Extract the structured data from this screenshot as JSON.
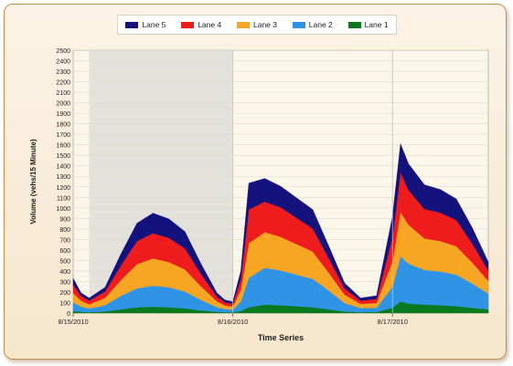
{
  "chart_data": {
    "type": "area",
    "stacked": true,
    "title": "",
    "xlabel": "Time Series",
    "ylabel": "Volume (vehs/15 Minute)",
    "ylim": [
      0,
      2500
    ],
    "ytick_step": 100,
    "grid": true,
    "legend_position": "top-center",
    "x_tick_labels": [
      "8/15/2010",
      "8/16/2010",
      "8/17/2010"
    ],
    "x_range_days": [
      0,
      2.6
    ],
    "shaded_region_days": [
      0.1,
      1.0
    ],
    "x_unit": "days from 8/15/2010 00:00",
    "series": [
      {
        "name": "Lane 1",
        "color": "#0b7a1f",
        "x": [
          0,
          0.05,
          0.1,
          0.2,
          0.3,
          0.4,
          0.5,
          0.6,
          0.7,
          0.8,
          0.9,
          0.95,
          1.0,
          1.05,
          1.1,
          1.2,
          1.3,
          1.4,
          1.5,
          1.6,
          1.7,
          1.8,
          1.9,
          2.0,
          2.05,
          2.1,
          2.2,
          2.3,
          2.4,
          2.5,
          2.6
        ],
        "values": [
          20,
          12,
          8,
          15,
          35,
          55,
          60,
          55,
          45,
          25,
          12,
          8,
          8,
          20,
          55,
          80,
          75,
          65,
          55,
          35,
          15,
          8,
          10,
          50,
          110,
          90,
          80,
          75,
          65,
          50,
          35
        ]
      },
      {
        "name": "Lane 2",
        "color": "#2f93e6",
        "x": [
          0,
          0.05,
          0.1,
          0.2,
          0.3,
          0.4,
          0.5,
          0.6,
          0.7,
          0.8,
          0.9,
          0.95,
          1.0,
          1.05,
          1.1,
          1.2,
          1.3,
          1.4,
          1.5,
          1.6,
          1.7,
          1.8,
          1.9,
          2.0,
          2.05,
          2.1,
          2.2,
          2.3,
          2.4,
          2.5,
          2.6
        ],
        "values": [
          80,
          50,
          35,
          60,
          130,
          180,
          200,
          190,
          160,
          100,
          45,
          30,
          25,
          90,
          280,
          350,
          330,
          300,
          270,
          180,
          80,
          40,
          40,
          200,
          430,
          380,
          330,
          320,
          300,
          230,
          150
        ]
      },
      {
        "name": "Lane 3",
        "color": "#f6a623",
        "x": [
          0,
          0.05,
          0.1,
          0.2,
          0.3,
          0.4,
          0.5,
          0.6,
          0.7,
          0.8,
          0.9,
          0.95,
          1.0,
          1.05,
          1.1,
          1.2,
          1.3,
          1.4,
          1.5,
          1.6,
          1.7,
          1.8,
          1.9,
          2.0,
          2.05,
          2.1,
          2.2,
          2.3,
          2.4,
          2.5,
          2.6
        ],
        "values": [
          90,
          55,
          40,
          70,
          150,
          230,
          260,
          240,
          210,
          130,
          55,
          35,
          30,
          110,
          330,
          340,
          320,
          290,
          260,
          170,
          80,
          40,
          45,
          240,
          420,
          370,
          300,
          290,
          270,
          200,
          120
        ]
      },
      {
        "name": "Lane 4",
        "color": "#ee1c1c",
        "x": [
          0,
          0.05,
          0.1,
          0.2,
          0.3,
          0.4,
          0.5,
          0.6,
          0.7,
          0.8,
          0.9,
          0.95,
          1.0,
          1.05,
          1.1,
          1.2,
          1.3,
          1.4,
          1.5,
          1.6,
          1.7,
          1.8,
          1.9,
          2.0,
          2.05,
          2.1,
          2.2,
          2.3,
          2.4,
          2.5,
          2.6
        ],
        "values": [
          80,
          45,
          35,
          60,
          140,
          220,
          240,
          230,
          200,
          120,
          45,
          30,
          25,
          100,
          320,
          290,
          280,
          250,
          220,
          140,
          60,
          30,
          40,
          230,
          380,
          330,
          280,
          270,
          250,
          180,
          100
        ]
      },
      {
        "name": "Lane 5",
        "color": "#14137d",
        "x": [
          0,
          0.05,
          0.1,
          0.2,
          0.3,
          0.4,
          0.5,
          0.6,
          0.7,
          0.8,
          0.9,
          0.95,
          1.0,
          1.05,
          1.1,
          1.2,
          1.3,
          1.4,
          1.5,
          1.6,
          1.7,
          1.8,
          1.9,
          2.0,
          2.05,
          2.1,
          2.2,
          2.3,
          2.4,
          2.5,
          2.6
        ],
        "values": [
          60,
          30,
          25,
          40,
          110,
          170,
          190,
          180,
          160,
          95,
          35,
          22,
          20,
          80,
          250,
          220,
          200,
          190,
          180,
          115,
          50,
          25,
          30,
          200,
          270,
          250,
          230,
          220,
          200,
          150,
          80
        ]
      }
    ]
  }
}
